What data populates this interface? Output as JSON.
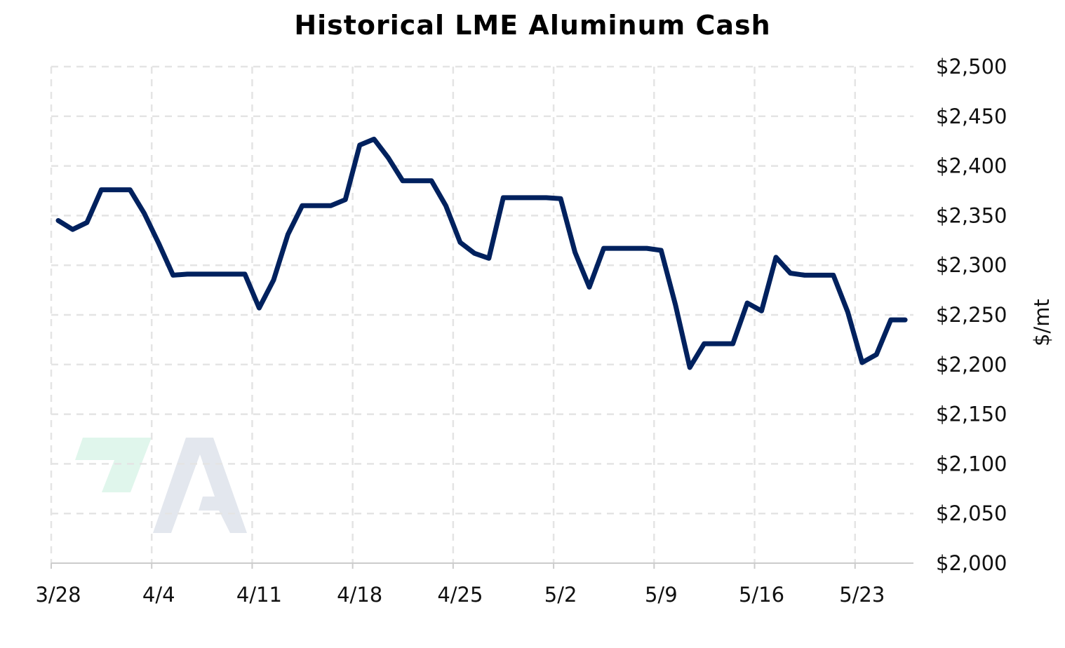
{
  "chart_data": {
    "type": "line",
    "title": "Historical LME Aluminum Cash",
    "xlabel": "",
    "ylabel": "$/mt",
    "ylim": [
      2000,
      2500
    ],
    "grid": true,
    "legend": "none",
    "x_ticks": [
      "3/28",
      "4/4",
      "4/11",
      "4/18",
      "4/25",
      "5/2",
      "5/9",
      "5/16",
      "5/23"
    ],
    "y_ticks": [
      "$2,000",
      "$2,050",
      "$2,100",
      "$2,150",
      "$2,200",
      "$2,250",
      "$2,300",
      "$2,350",
      "$2,400",
      "$2,450",
      "$2,500"
    ],
    "y_tick_values": [
      2000,
      2050,
      2100,
      2150,
      2200,
      2250,
      2300,
      2350,
      2400,
      2450,
      2500
    ],
    "series": [
      {
        "color": "#00215e",
        "points": [
          [
            "3/28",
            2345
          ],
          [
            "3/29",
            2336
          ],
          [
            "3/30",
            2343
          ],
          [
            "3/31",
            2376
          ],
          [
            "4/1",
            2376
          ],
          [
            "4/2",
            2376
          ],
          [
            "4/3",
            2352
          ],
          [
            "4/4",
            2322
          ],
          [
            "4/5",
            2290
          ],
          [
            "4/6",
            2291
          ],
          [
            "4/7",
            2291
          ],
          [
            "4/8",
            2291
          ],
          [
            "4/9",
            2291
          ],
          [
            "4/10",
            2291
          ],
          [
            "4/11",
            2257
          ],
          [
            "4/12",
            2285
          ],
          [
            "4/13",
            2331
          ],
          [
            "4/14",
            2360
          ],
          [
            "4/15",
            2360
          ],
          [
            "4/16",
            2360
          ],
          [
            "4/17",
            2366
          ],
          [
            "4/18",
            2421
          ],
          [
            "4/19",
            2427
          ],
          [
            "4/20",
            2408
          ],
          [
            "4/21",
            2385
          ],
          [
            "4/22",
            2385
          ],
          [
            "4/23",
            2385
          ],
          [
            "4/24",
            2360
          ],
          [
            "4/25",
            2323
          ],
          [
            "4/26",
            2312
          ],
          [
            "4/27",
            2307
          ],
          [
            "4/28",
            2368
          ],
          [
            "4/29",
            2368
          ],
          [
            "4/30",
            2368
          ],
          [
            "5/1",
            2368
          ],
          [
            "5/2",
            2367
          ],
          [
            "5/3",
            2313
          ],
          [
            "5/4",
            2278
          ],
          [
            "5/5",
            2317
          ],
          [
            "5/6",
            2317
          ],
          [
            "5/7",
            2317
          ],
          [
            "5/8",
            2317
          ],
          [
            "5/9",
            2315
          ],
          [
            "5/10",
            2260
          ],
          [
            "5/11",
            2197
          ],
          [
            "5/12",
            2221
          ],
          [
            "5/13",
            2221
          ],
          [
            "5/14",
            2221
          ],
          [
            "5/15",
            2262
          ],
          [
            "5/16",
            2254
          ],
          [
            "5/17",
            2308
          ],
          [
            "5/18",
            2292
          ],
          [
            "5/19",
            2290
          ],
          [
            "5/20",
            2290
          ],
          [
            "5/21",
            2290
          ],
          [
            "5/22",
            2253
          ],
          [
            "5/23",
            2202
          ],
          [
            "5/24",
            2210
          ],
          [
            "5/25",
            2245
          ],
          [
            "5/26",
            2245
          ]
        ]
      }
    ]
  }
}
